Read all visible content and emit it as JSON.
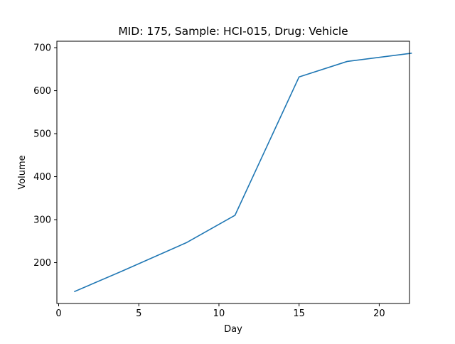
{
  "chart_data": {
    "type": "line",
    "title": "MID: 175, Sample: HCI-015, Drug: Vehicle",
    "xlabel": "Day",
    "ylabel": "Volume",
    "xlim": [
      0.0,
      22.0
    ],
    "ylim": [
      105,
      715
    ],
    "xticks": [
      0,
      5,
      10,
      15,
      20
    ],
    "yticks": [
      200,
      300,
      400,
      500,
      600,
      700
    ],
    "grid": false,
    "series": [
      {
        "color": "#1f77b4",
        "x": [
          1,
          4,
          8,
          11,
          15,
          18,
          22
        ],
        "y": [
          133,
          181,
          247,
          310,
          632,
          668,
          687
        ]
      }
    ]
  }
}
